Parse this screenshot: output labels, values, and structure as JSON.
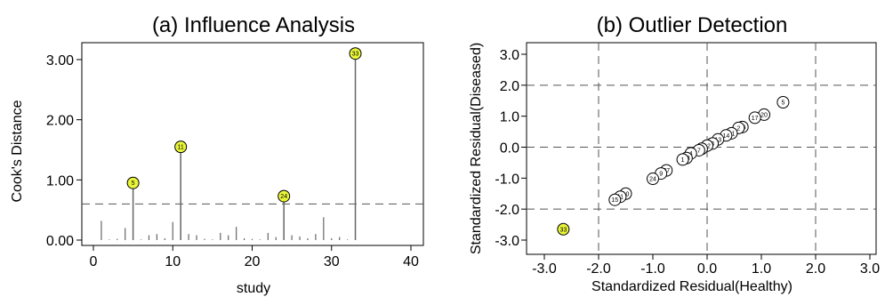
{
  "chart_data": [
    {
      "type": "stem",
      "title": "(a) Influence Analysis",
      "xlabel": "study",
      "ylabel": "Cook's Distance",
      "xlim": [
        0,
        40
      ],
      "ylim": [
        0,
        3.2
      ],
      "xticks": [
        "0",
        "10",
        "20",
        "30",
        "40"
      ],
      "yticks": [
        "0.00",
        "1.00",
        "2.00",
        "3.00"
      ],
      "threshold": 0.6,
      "points": [
        {
          "x": 1,
          "y": 0.32
        },
        {
          "x": 2,
          "y": 0.01
        },
        {
          "x": 3,
          "y": 0.02
        },
        {
          "x": 4,
          "y": 0.2
        },
        {
          "x": 5,
          "y": 0.95,
          "label": "5",
          "highlight": true
        },
        {
          "x": 6,
          "y": 0.01
        },
        {
          "x": 7,
          "y": 0.08
        },
        {
          "x": 8,
          "y": 0.1
        },
        {
          "x": 9,
          "y": 0.03
        },
        {
          "x": 10,
          "y": 0.3
        },
        {
          "x": 11,
          "y": 1.55,
          "label": "11",
          "highlight": true
        },
        {
          "x": 12,
          "y": 0.1
        },
        {
          "x": 13,
          "y": 0.08
        },
        {
          "x": 14,
          "y": 0.02
        },
        {
          "x": 15,
          "y": 0.01
        },
        {
          "x": 16,
          "y": 0.12
        },
        {
          "x": 17,
          "y": 0.08
        },
        {
          "x": 18,
          "y": 0.22
        },
        {
          "x": 19,
          "y": 0.03
        },
        {
          "x": 20,
          "y": 0.02
        },
        {
          "x": 21,
          "y": 0.01
        },
        {
          "x": 22,
          "y": 0.12
        },
        {
          "x": 23,
          "y": 0.05
        },
        {
          "x": 24,
          "y": 0.73,
          "label": "24",
          "highlight": true
        },
        {
          "x": 25,
          "y": 0.08
        },
        {
          "x": 26,
          "y": 0.06
        },
        {
          "x": 27,
          "y": 0.03
        },
        {
          "x": 28,
          "y": 0.1
        },
        {
          "x": 29,
          "y": 0.38
        },
        {
          "x": 30,
          "y": 0.03
        },
        {
          "x": 31,
          "y": 0.05
        },
        {
          "x": 32,
          "y": 0.01
        },
        {
          "x": 33,
          "y": 3.1,
          "label": "33",
          "highlight": true
        }
      ]
    },
    {
      "type": "scatter",
      "title": "(b) Outlier Detection",
      "xlabel": "Standardized Residual(Healthy)",
      "ylabel": "Standardized Residual(Diseased)",
      "xlim": [
        -3.3,
        3.2
      ],
      "ylim": [
        -3.2,
        3.3
      ],
      "xticks": [
        "-3.0",
        "-2.0",
        "-1.0",
        "0.0",
        "1.0",
        "2.0",
        "3.0"
      ],
      "yticks": [
        "3.0",
        "2.0",
        "1.0",
        "0.0",
        "-1.0",
        "-2.0",
        "-3.0"
      ],
      "reference_lines": [
        -2,
        0,
        2
      ],
      "points": [
        {
          "x": 1.4,
          "y": 1.45,
          "label": "5"
        },
        {
          "x": 1.05,
          "y": 1.05,
          "label": "20"
        },
        {
          "x": 0.88,
          "y": 0.95,
          "label": "17"
        },
        {
          "x": 0.65,
          "y": 0.65,
          "label": "26"
        },
        {
          "x": 0.58,
          "y": 0.62,
          "label": "2"
        },
        {
          "x": 0.45,
          "y": 0.45,
          "label": "21"
        },
        {
          "x": 0.35,
          "y": 0.38,
          "label": "14"
        },
        {
          "x": 0.2,
          "y": 0.25,
          "label": "13"
        },
        {
          "x": 0.1,
          "y": 0.12,
          "label": "3"
        },
        {
          "x": 0.0,
          "y": 0.05,
          "label": "12"
        },
        {
          "x": -0.1,
          "y": -0.05,
          "label": "6"
        },
        {
          "x": -0.15,
          "y": -0.1,
          "label": "7"
        },
        {
          "x": -0.3,
          "y": -0.2,
          "label": "4"
        },
        {
          "x": -0.38,
          "y": -0.35,
          "label": "28"
        },
        {
          "x": -0.45,
          "y": -0.4,
          "label": "1"
        },
        {
          "x": -0.75,
          "y": -0.75,
          "label": "27"
        },
        {
          "x": -0.85,
          "y": -0.85,
          "label": "9"
        },
        {
          "x": -1.0,
          "y": -1.02,
          "label": "24"
        },
        {
          "x": -1.5,
          "y": -1.5,
          "label": "10"
        },
        {
          "x": -1.6,
          "y": -1.6,
          "label": "11"
        },
        {
          "x": -1.7,
          "y": -1.7,
          "label": "15"
        },
        {
          "x": -2.65,
          "y": -2.65,
          "label": "33",
          "highlight": true
        }
      ]
    }
  ],
  "colors": {
    "highlight": "#e8f53a",
    "stem": "#666666",
    "threshold": "#555555",
    "reference": "#555555",
    "point_fill": "#ffffff"
  }
}
